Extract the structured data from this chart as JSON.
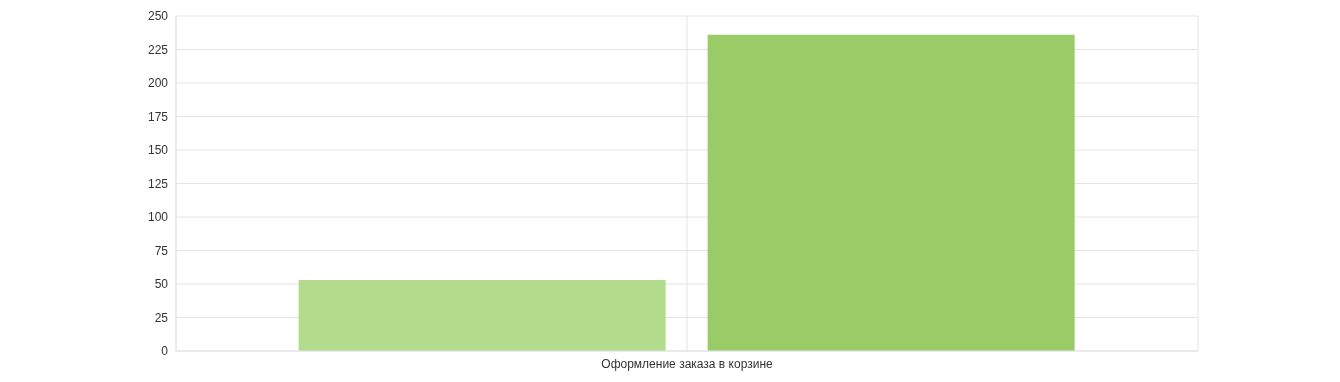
{
  "chart_data": {
    "type": "bar",
    "categories": [
      "Оформление заказа в корзине"
    ],
    "series": [
      {
        "color": "#b3db8c",
        "values": [
          53
        ]
      },
      {
        "color": "#99cc66",
        "values": [
          236
        ]
      }
    ],
    "ylim": [
      0,
      250
    ],
    "yticks": [
      0,
      25,
      50,
      75,
      100,
      125,
      150,
      175,
      200,
      225,
      250
    ],
    "grid": true,
    "legend": false
  }
}
